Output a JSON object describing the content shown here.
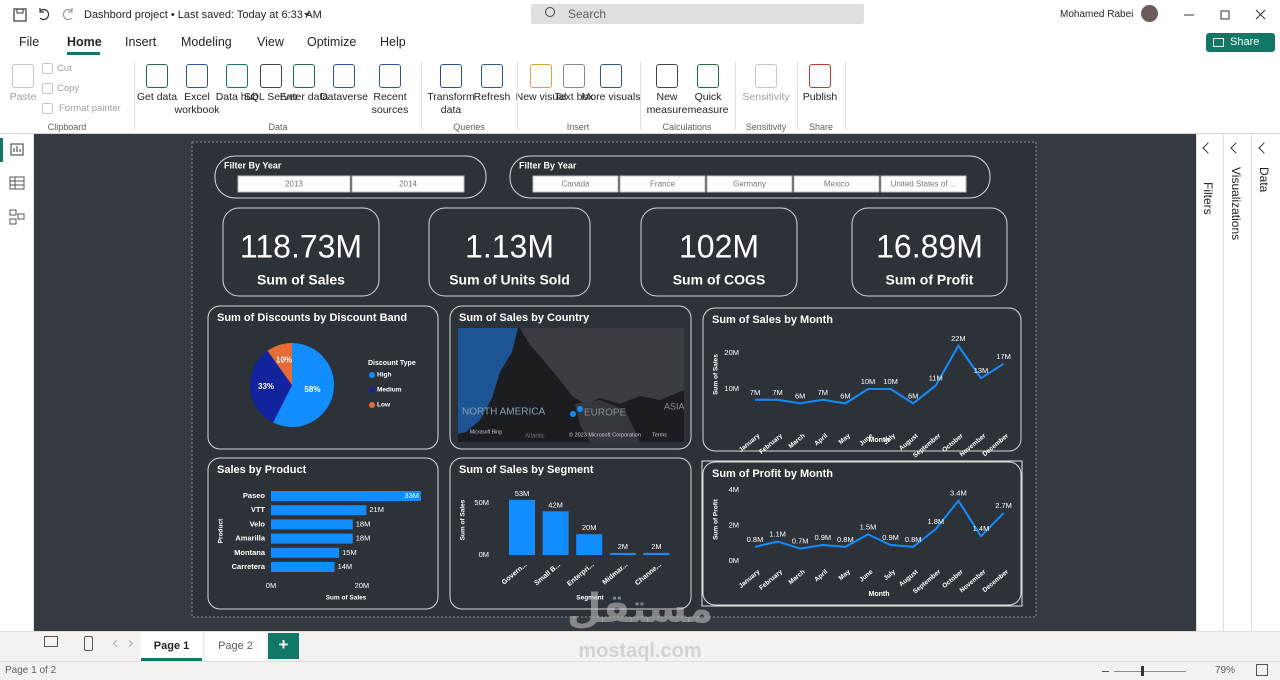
{
  "title_bar": {
    "document": "Dashbord project • Last saved: Today at 6:33 AM",
    "search": "Search",
    "user": "Mohamed Rabei"
  },
  "menu": {
    "tabs": [
      "File",
      "Home",
      "Insert",
      "Modeling",
      "View",
      "Optimize",
      "Help"
    ],
    "share": "Share"
  },
  "ribbon": {
    "groups": [
      {
        "label": "Clipboard",
        "buttons": [
          "Paste",
          "Cut",
          "Copy",
          "Format painter"
        ]
      },
      {
        "label": "Data",
        "buttons": [
          "Get data",
          "Excel workbook",
          "Data hub",
          "SQL Server",
          "Enter data",
          "Dataverse",
          "Recent sources"
        ]
      },
      {
        "label": "Queries",
        "buttons": [
          "Transform data",
          "Refresh"
        ]
      },
      {
        "label": "Insert",
        "buttons": [
          "New visual",
          "Text box",
          "More visuals"
        ]
      },
      {
        "label": "Calculations",
        "buttons": [
          "New measure",
          "Quick measure"
        ]
      },
      {
        "label": "Sensitivity",
        "buttons": [
          "Sensitivity"
        ]
      },
      {
        "label": "Share",
        "buttons": [
          "Publish"
        ]
      }
    ]
  },
  "report": {
    "slicers": [
      {
        "title": "Filter By Year",
        "items": [
          "2013",
          "2014"
        ]
      },
      {
        "title": "Filter By Year",
        "items": [
          "Canada",
          "France",
          "Germany",
          "Mexico",
          "United States of ..."
        ]
      }
    ],
    "cards": [
      {
        "value": "118.73M",
        "label": "Sum of Sales"
      },
      {
        "value": "1.13M",
        "label": "Sum of Units Sold"
      },
      {
        "value": "102M",
        "label": "Sum of COGS"
      },
      {
        "value": "16.89M",
        "label": "Sum of Profit"
      }
    ],
    "discounts_pie": {
      "type": "pie",
      "title": "Sum of Discounts by Discount Band",
      "legend_title": "Discount Type",
      "legend": "right",
      "categories": [
        "High",
        "Medium",
        "Low"
      ],
      "values": [
        58,
        33,
        10
      ],
      "value_labels": [
        "58%",
        "33%",
        "10%"
      ],
      "colors": [
        "#118dff",
        "#12239e",
        "#e66c37"
      ]
    },
    "country_map": {
      "type": "map",
      "title": "Sum of Sales by Country",
      "labels": [
        "NORTH AMERICA",
        "EUROPE",
        "ASIA",
        "Atlantic",
        "Microsoft Bing",
        "© 2023 Microsoft Corporation",
        "Terms"
      ]
    },
    "sales_by_month": {
      "type": "line",
      "title": "Sum of Sales by Month",
      "x_label": "Month",
      "y_label": "Sum of Sales",
      "categories": [
        "January",
        "February",
        "March",
        "April",
        "May",
        "June",
        "July",
        "August",
        "September",
        "October",
        "November",
        "December"
      ],
      "values": [
        7,
        7,
        6,
        7,
        6,
        10,
        10,
        6,
        11,
        22,
        13,
        17
      ],
      "value_labels": [
        "7M",
        "7M",
        "6M",
        "7M",
        "6M",
        "10M",
        "10M",
        "6M",
        "11M",
        "22M",
        "13M",
        "17M"
      ],
      "color": "#118dff",
      "ylim": [
        0,
        25
      ],
      "yticks": [
        {
          "value": 10,
          "label": "10M"
        },
        {
          "value": 20,
          "label": "20M"
        }
      ]
    },
    "sales_by_product": {
      "type": "bar",
      "orientation": "horizontal",
      "title": "Sales by Product",
      "x_label": "Sum of Sales",
      "y_label": "Product",
      "categories": [
        "Paseo",
        "VTT",
        "Velo",
        "Amarilla",
        "Montana",
        "Carretera"
      ],
      "values": [
        33,
        21,
        18,
        18,
        15,
        14
      ],
      "value_labels": [
        "33M",
        "21M",
        "18M",
        "18M",
        "15M",
        "14M"
      ],
      "color": "#118dff",
      "xlim": [
        0,
        35
      ],
      "xticks": [
        {
          "value": 0,
          "label": "0M"
        },
        {
          "value": 20,
          "label": "20M"
        }
      ]
    },
    "sales_by_segment": {
      "type": "bar",
      "orientation": "vertical",
      "title": "Sum of Sales by Segment",
      "x_label": "Segment",
      "y_label": "Sum of Sales",
      "categories": [
        "Govern...",
        "Small B...",
        "Enterpri...",
        "Midmar...",
        "Channe..."
      ],
      "values": [
        53,
        42,
        20,
        2,
        2
      ],
      "value_labels": [
        "53M",
        "42M",
        "20M",
        "2M",
        "2M"
      ],
      "color": "#118dff",
      "ylim": [
        0,
        55
      ],
      "yticks": [
        {
          "value": 0,
          "label": "0M"
        },
        {
          "value": 50,
          "label": "50M"
        }
      ]
    },
    "profit_by_month": {
      "type": "line",
      "title": "Sum of Profit by Month",
      "x_label": "Month",
      "y_label": "Sum of Profit",
      "categories": [
        "January",
        "February",
        "March",
        "April",
        "May",
        "June",
        "July",
        "August",
        "September",
        "October",
        "November",
        "December"
      ],
      "values": [
        0.8,
        1.1,
        0.7,
        0.9,
        0.8,
        1.5,
        0.9,
        0.8,
        1.8,
        3.4,
        1.4,
        2.7
      ],
      "value_labels": [
        "0.8M",
        "1.1M",
        "0.7M",
        "0.9M",
        "0.8M",
        "1.5M",
        "0.9M",
        "0.8M",
        "1.8M",
        "3.4M",
        "1.4M",
        "2.7M"
      ],
      "color": "#118dff",
      "ylim": [
        0,
        4
      ],
      "yticks": [
        {
          "value": 0,
          "label": "0M"
        },
        {
          "value": 2,
          "label": "2M"
        },
        {
          "value": 4,
          "label": "4M"
        }
      ]
    }
  },
  "panes": [
    "Filters",
    "Visualizations",
    "Data"
  ],
  "pages": {
    "tabs": [
      "Page 1",
      "Page 2"
    ],
    "add": "+"
  },
  "watermark": {
    "logo": "مستقل",
    "url": "mostaql.com"
  },
  "status": {
    "page": "Page 1 of 2",
    "zoom": "79%"
  }
}
